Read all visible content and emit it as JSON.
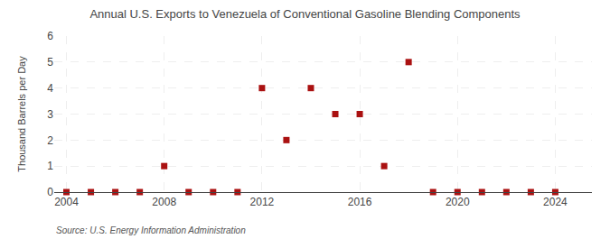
{
  "chart_data": {
    "type": "scatter",
    "title": "Annual U.S. Exports to Venezuela of Conventional Gasoline Blending Components",
    "ylabel": "Thousand Barrels per Day",
    "annotations": [
      "Source: U.S. Energy Information Administration"
    ],
    "x": [
      2004,
      2005,
      2006,
      2007,
      2008,
      2009,
      2010,
      2011,
      2012,
      2013,
      2014,
      2015,
      2016,
      2017,
      2018,
      2019,
      2020,
      2021,
      2022,
      2023,
      2024
    ],
    "values": [
      0,
      0,
      0,
      0,
      1,
      0,
      0,
      0,
      4,
      2,
      4,
      3,
      3,
      1,
      5,
      0,
      0,
      0,
      0,
      0,
      0
    ],
    "color": "#aa1111",
    "marker": "square",
    "xlim": [
      2003.5,
      2025.5
    ],
    "ylim": [
      0,
      6
    ],
    "xticks": [
      2004,
      2008,
      2012,
      2016,
      2020,
      2024
    ],
    "yticks": [
      0,
      1,
      2,
      3,
      4,
      5,
      6
    ],
    "grid": true
  }
}
